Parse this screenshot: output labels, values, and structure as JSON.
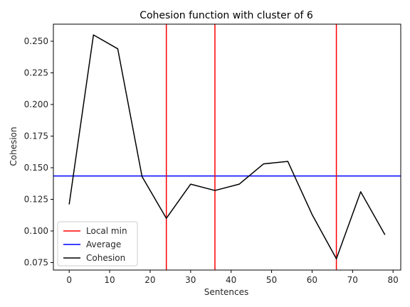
{
  "chart_data": {
    "type": "line",
    "title": "Cohesion function with cluster of 6",
    "xlabel": "Sentences",
    "ylabel": "Cohesion",
    "xlim": [
      -3.9,
      81.9
    ],
    "ylim": [
      0.0691,
      0.2635
    ],
    "x_ticks": [
      0,
      10,
      20,
      30,
      40,
      50,
      60,
      70,
      80
    ],
    "y_ticks": [
      0.075,
      0.1,
      0.125,
      0.15,
      0.175,
      0.2,
      0.225,
      0.25
    ],
    "y_tick_labels": [
      "0.075",
      "0.100",
      "0.125",
      "0.150",
      "0.175",
      "0.200",
      "0.225",
      "0.250"
    ],
    "grid": false,
    "legend_position": "lower-left",
    "legend": [
      {
        "label": "Local min",
        "color": "#ff0000"
      },
      {
        "label": "Average",
        "color": "#0000ff"
      },
      {
        "label": "Cohesion",
        "color": "#000000"
      }
    ],
    "series": [
      {
        "name": "Cohesion",
        "color": "#000000",
        "x": [
          0,
          6,
          12,
          18,
          24,
          30,
          36,
          42,
          48,
          54,
          60,
          66,
          72,
          78
        ],
        "y": [
          0.121,
          0.255,
          0.244,
          0.143,
          0.11,
          0.137,
          0.132,
          0.137,
          0.153,
          0.155,
          0.113,
          0.078,
          0.131,
          0.097
        ]
      }
    ],
    "average": {
      "name": "Average",
      "value": 0.1435,
      "color": "#0000ff"
    },
    "local_min": {
      "name": "Local min",
      "x": [
        24,
        36,
        66
      ],
      "color": "#ff0000"
    }
  }
}
